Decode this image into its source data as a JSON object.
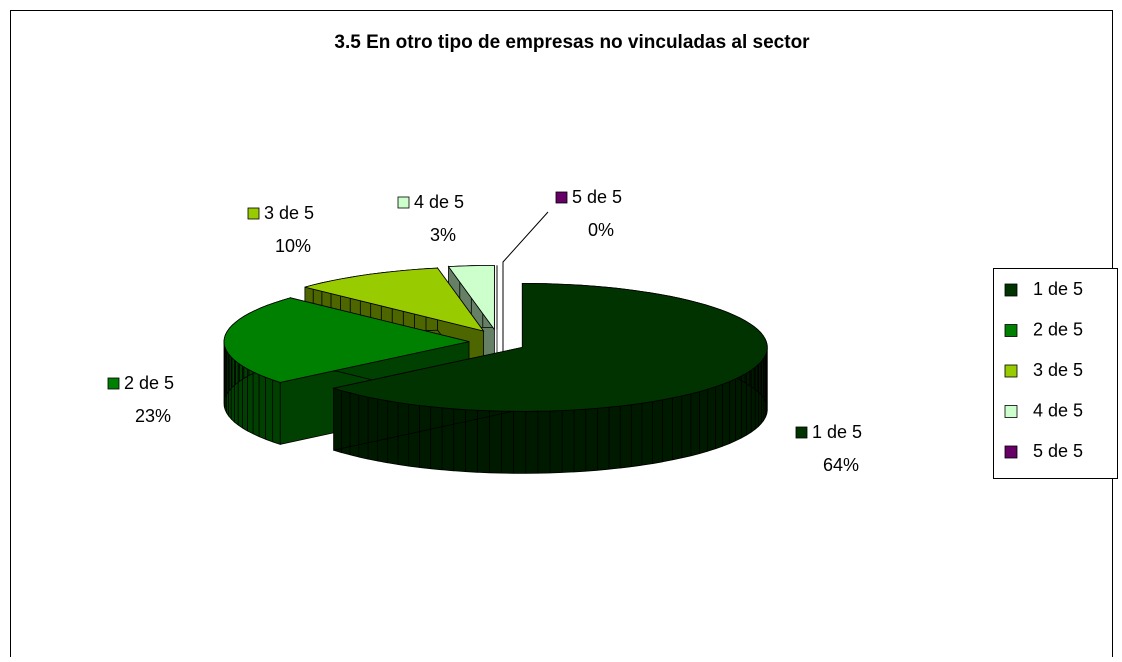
{
  "chart_data": {
    "type": "pie",
    "title": "3.5 En otro tipo de empresas no vinculadas al sector",
    "categories": [
      "1 de 5",
      "2 de 5",
      "3 de 5",
      "4 de 5",
      "5 de 5"
    ],
    "values": [
      64,
      23,
      10,
      3,
      0
    ],
    "value_labels": [
      "64%",
      "23%",
      "10%",
      "3%",
      "0%"
    ],
    "colors": [
      "#003300",
      "#008000",
      "#99cc00",
      "#ccffcc",
      "#660066"
    ],
    "legend": "right"
  }
}
